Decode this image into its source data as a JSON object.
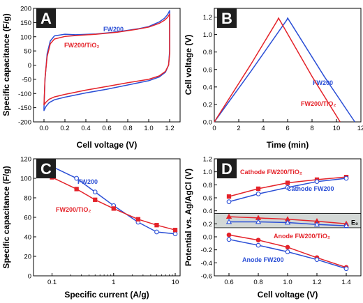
{
  "colors": {
    "blue": "#2b4fd6",
    "red": "#e4232a",
    "panel_label_bg": "#1e1e1e",
    "band_fill": "#d3d8d6"
  },
  "chart_data": [
    {
      "id": "A",
      "type": "line",
      "panel_label": "A",
      "xlabel": "Cell voltage (V)",
      "ylabel": "Specific capacitance (F/g)",
      "xlim": [
        -0.1,
        1.3
      ],
      "ylim": [
        -200,
        200
      ],
      "xticks": [
        "0.0",
        "0.2",
        "0.4",
        "0.6",
        "0.8",
        "1.0",
        "1.2"
      ],
      "xtick_values": [
        0,
        0.2,
        0.4,
        0.6,
        0.8,
        1.0,
        1.2
      ],
      "yticks": [
        "-200",
        "-150",
        "-100",
        "-50",
        "0",
        "50",
        "100",
        "150",
        "200"
      ],
      "ytick_values": [
        -200,
        -150,
        -100,
        -50,
        0,
        50,
        100,
        150,
        200
      ],
      "grid": false,
      "series": [
        {
          "name": "FW200",
          "color": "blue",
          "x": [
            0.0,
            0.01,
            0.03,
            0.06,
            0.1,
            0.2,
            0.3,
            0.5,
            0.7,
            0.9,
            1.0,
            1.1,
            1.15,
            1.18,
            1.2,
            1.2,
            1.2,
            1.19,
            1.16,
            1.1,
            1.0,
            0.8,
            0.6,
            0.4,
            0.2,
            0.1,
            0.05,
            0.02,
            0.0
          ],
          "y": [
            -150,
            -50,
            40,
            85,
            103,
            109,
            107,
            110,
            117,
            128,
            136,
            152,
            165,
            178,
            192,
            100,
            50,
            0,
            -25,
            -42,
            -55,
            -70,
            -85,
            -98,
            -113,
            -122,
            -132,
            -145,
            -160
          ]
        },
        {
          "name": "FW200/TiO₂",
          "color": "red",
          "x": [
            0.0,
            0.01,
            0.03,
            0.06,
            0.1,
            0.2,
            0.3,
            0.5,
            0.7,
            0.9,
            1.0,
            1.1,
            1.15,
            1.18,
            1.2,
            1.2,
            1.2,
            1.19,
            1.16,
            1.1,
            1.0,
            0.8,
            0.6,
            0.4,
            0.2,
            0.1,
            0.05,
            0.02,
            0.0
          ],
          "y": [
            -140,
            -45,
            30,
            75,
            92,
            101,
            104,
            109,
            116,
            127,
            134,
            147,
            158,
            168,
            180,
            90,
            40,
            0,
            -22,
            -38,
            -50,
            -62,
            -75,
            -88,
            -103,
            -112,
            -120,
            -130,
            -140
          ]
        }
      ]
    },
    {
      "id": "B",
      "type": "line",
      "panel_label": "B",
      "xlabel": "Time (min)",
      "ylabel": "Cell voltage (V)",
      "xlim": [
        0,
        12
      ],
      "ylim": [
        0,
        1.3
      ],
      "xticks": [
        "0",
        "2",
        "4",
        "6",
        "8",
        "10",
        "12"
      ],
      "xtick_values": [
        0,
        2,
        4,
        6,
        8,
        10,
        12
      ],
      "yticks": [
        "0.0",
        "0.2",
        "0.4",
        "0.6",
        "0.8",
        "1.0",
        "1.2"
      ],
      "ytick_values": [
        0,
        0.2,
        0.4,
        0.6,
        0.8,
        1.0,
        1.2
      ],
      "grid": false,
      "series": [
        {
          "name": "FW200",
          "color": "blue",
          "x": [
            0,
            3,
            5.95,
            6.0,
            9,
            11.5
          ],
          "y": [
            0,
            0.58,
            1.17,
            1.19,
            0.52,
            0.0
          ]
        },
        {
          "name": "FW200/TiO₂",
          "color": "red",
          "x": [
            0,
            3,
            5.2,
            5.25,
            8,
            10.3
          ],
          "y": [
            0,
            0.66,
            1.17,
            1.19,
            0.52,
            0.0
          ]
        }
      ]
    },
    {
      "id": "C",
      "type": "line",
      "panel_label": "C",
      "xlabel": "Specific current (A/g)",
      "ylabel": "Specific capacitance (F/g)",
      "xscale": "log",
      "xlim": [
        0.05,
        12
      ],
      "ylim": [
        0,
        120
      ],
      "xticks": [
        "0.1",
        "1",
        "10"
      ],
      "xtick_values": [
        0.1,
        1,
        10
      ],
      "yticks": [
        "0",
        "20",
        "40",
        "60",
        "80",
        "100",
        "120"
      ],
      "ytick_values": [
        0,
        20,
        40,
        60,
        80,
        100,
        120
      ],
      "grid": false,
      "series": [
        {
          "name": "FW200",
          "color": "blue",
          "marker": "open-circle",
          "x": [
            0.1,
            0.25,
            0.5,
            1,
            2.5,
            5,
            10
          ],
          "y": [
            112,
            100,
            86,
            72,
            55,
            45,
            43
          ]
        },
        {
          "name": "FW200/TiO₂",
          "color": "red",
          "marker": "filled-square",
          "x": [
            0.1,
            0.25,
            0.5,
            1,
            2.5,
            5,
            10
          ],
          "y": [
            101,
            89,
            78,
            69,
            58,
            52,
            47
          ]
        }
      ]
    },
    {
      "id": "D",
      "type": "line",
      "panel_label": "D",
      "xlabel": "Cell voltage (V)",
      "ylabel": "Potential vs. Ag/AgCl (V)",
      "xlim": [
        0.5,
        1.5
      ],
      "ylim": [
        -0.6,
        1.2
      ],
      "xticks": [
        "0.6",
        "0.8",
        "1.0",
        "1.2",
        "1.4"
      ],
      "xtick_values": [
        0.6,
        0.8,
        1.0,
        1.2,
        1.4
      ],
      "yticks": [
        "-0.6",
        "-0.4",
        "-0.2",
        "0.0",
        "0.2",
        "0.4",
        "0.6",
        "0.8",
        "1.0",
        "1.2"
      ],
      "ytick_values": [
        -0.6,
        -0.4,
        -0.2,
        0.0,
        0.2,
        0.4,
        0.6,
        0.8,
        1.0,
        1.2
      ],
      "grid": false,
      "band": {
        "y0": 0.14,
        "y1": 0.36,
        "label": "E₀"
      },
      "series": [
        {
          "name": "Cathode FW200/TiO₂",
          "color": "red",
          "marker": "filled-square",
          "x": [
            0.6,
            0.8,
            1.0,
            1.2,
            1.4
          ],
          "y": [
            0.62,
            0.74,
            0.83,
            0.88,
            0.92
          ]
        },
        {
          "name": "Cathode FW200",
          "color": "blue",
          "marker": "open-circle",
          "x": [
            0.6,
            0.8,
            1.0,
            1.2,
            1.4
          ],
          "y": [
            0.54,
            0.66,
            0.76,
            0.85,
            0.9
          ]
        },
        {
          "name": "",
          "color": "red",
          "marker": "filled-triangle",
          "x": [
            0.6,
            0.8,
            1.0,
            1.2,
            1.4
          ],
          "y": [
            0.31,
            0.29,
            0.27,
            0.24,
            0.2
          ]
        },
        {
          "name": "",
          "color": "blue",
          "marker": "open-triangle",
          "x": [
            0.6,
            0.8,
            1.0,
            1.2,
            1.4
          ],
          "y": [
            0.23,
            0.23,
            0.22,
            0.19,
            0.17
          ]
        },
        {
          "name": "Anode FW200/TiO₂",
          "color": "red",
          "marker": "filled-circle",
          "x": [
            0.6,
            0.8,
            1.0,
            1.2,
            1.4
          ],
          "y": [
            0.03,
            -0.05,
            -0.16,
            -0.32,
            -0.47
          ]
        },
        {
          "name": "Anode FW200",
          "color": "blue",
          "marker": "open-circle",
          "x": [
            0.6,
            0.8,
            1.0,
            1.2,
            1.4
          ],
          "y": [
            -0.04,
            -0.13,
            -0.23,
            -0.35,
            -0.49
          ]
        }
      ]
    }
  ]
}
